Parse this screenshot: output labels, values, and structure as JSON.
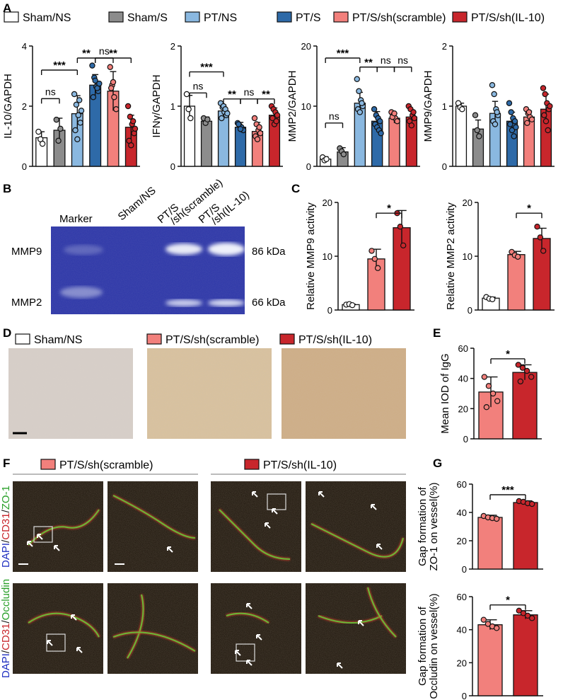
{
  "panel_letters": [
    "A",
    "B",
    "C",
    "D",
    "E",
    "F",
    "G"
  ],
  "groups": [
    {
      "name": "Sham/NS",
      "color": "#ffffff"
    },
    {
      "name": "Sham/S",
      "color": "#8c8c8c"
    },
    {
      "name": "PT/NS",
      "color": "#8ab8e0"
    },
    {
      "name": "PT/S",
      "color": "#2e6aa8"
    },
    {
      "name": "PT/S/sh(scramble)",
      "color": "#f2807c"
    },
    {
      "name": "PT/S/sh(IL-10)",
      "color": "#c8262c"
    }
  ],
  "chart_data": [
    {
      "id": "A1",
      "type": "bar",
      "ylabel": "IL-10/GAPDH",
      "ylim": [
        0,
        4
      ],
      "ticks": [
        "0",
        "2",
        "4"
      ],
      "categories": [
        "Sham/NS",
        "Sham/S",
        "PT/NS",
        "PT/S",
        "PT/S/sh(scramble)",
        "PT/S/sh(IL-10)"
      ],
      "values": [
        0.95,
        1.2,
        1.75,
        2.7,
        2.5,
        1.3
      ],
      "errors": [
        0.2,
        0.4,
        0.6,
        0.35,
        0.65,
        0.4
      ],
      "points": [
        [
          1.15,
          0.9,
          0.75
        ],
        [
          1.55,
          0.85,
          1.25
        ],
        [
          2.4,
          2.05,
          1.7,
          1.45,
          1.2,
          0.9,
          2.2,
          1.85
        ],
        [
          3.35,
          2.95,
          2.65,
          2.5,
          2.3,
          2.85,
          2.6,
          2.75
        ],
        [
          3.3,
          2.7,
          2.3,
          1.9,
          2.6,
          2.8
        ],
        [
          2.0,
          1.65,
          1.4,
          1.1,
          0.85,
          0.7,
          1.5,
          1.25
        ]
      ],
      "annotations": [
        {
          "text": "***",
          "from": 0,
          "to": 2
        },
        {
          "text": "ns",
          "from": 0,
          "to": 1
        },
        {
          "text": "**",
          "from": 3,
          "to": "2"
        },
        {
          "text": "ns",
          "from": 3,
          "to": 4
        },
        {
          "text": "**",
          "from": 3,
          "to": 5
        }
      ]
    },
    {
      "id": "A2",
      "type": "bar",
      "ylabel": "IFNγ/GAPDH",
      "ylim": [
        0,
        2
      ],
      "ticks": [
        "0",
        "1",
        "2"
      ],
      "categories": [
        "Sham/NS",
        "Sham/S",
        "PT/NS",
        "PT/S",
        "PT/S/sh(scramble)",
        "PT/S/sh(IL-10)"
      ],
      "values": [
        1.0,
        0.75,
        0.92,
        0.65,
        0.58,
        0.85
      ],
      "errors": [
        0.18,
        0.07,
        0.1,
        0.08,
        0.15,
        0.12
      ],
      "points": [
        [
          1.2,
          0.95,
          0.8
        ],
        [
          0.8,
          0.72,
          0.78
        ],
        [
          1.05,
          0.98,
          0.9,
          0.85,
          0.8,
          1.0,
          0.95,
          0.88
        ],
        [
          0.72,
          0.68,
          0.65,
          0.6,
          0.7,
          0.62
        ],
        [
          0.8,
          0.7,
          0.6,
          0.55,
          0.5,
          0.45,
          0.65
        ],
        [
          1.0,
          0.95,
          0.9,
          0.85,
          0.8,
          0.7,
          0.75
        ]
      ],
      "annotations": [
        {
          "text": "***",
          "from": 0,
          "to": 2
        },
        {
          "text": "ns",
          "from": 0,
          "to": 1
        },
        {
          "text": "**",
          "from": 2,
          "to": 3
        },
        {
          "text": "ns",
          "from": 3,
          "to": 4
        },
        {
          "text": "**",
          "from": 4,
          "to": 5
        }
      ]
    },
    {
      "id": "A3",
      "type": "bar",
      "ylabel": "MMP2/GAPDH",
      "ylim": [
        0,
        20
      ],
      "ticks": [
        "0",
        "10",
        "20"
      ],
      "categories": [
        "Sham/NS",
        "Sham/S",
        "PT/NS",
        "PT/S",
        "PT/S/sh(scramble)",
        "PT/S/sh(IL-10)"
      ],
      "values": [
        1.2,
        2.4,
        10.5,
        7.5,
        8.0,
        8.2
      ],
      "errors": [
        0.4,
        0.7,
        1.8,
        1.6,
        0.8,
        1.2
      ],
      "points": [
        [
          1.5,
          1.0,
          1.2
        ],
        [
          3.0,
          2.5,
          2.0
        ],
        [
          14.5,
          12.5,
          11.0,
          10.0,
          9.5,
          9.0,
          10.5
        ],
        [
          9.5,
          8.5,
          8.0,
          7.5,
          7.0,
          6.5,
          6.0,
          5.5
        ],
        [
          9.0,
          8.5,
          8.0,
          7.5,
          8.2,
          8.8
        ],
        [
          10.0,
          9.5,
          8.5,
          8.0,
          7.5,
          6.8,
          9.0
        ]
      ],
      "annotations": [
        {
          "text": "ns",
          "from": 0,
          "to": 1
        },
        {
          "text": "***",
          "from": 0,
          "to": 2
        },
        {
          "text": "**",
          "from": 2,
          "to": 3
        },
        {
          "text": "ns",
          "from": 3,
          "to": 4
        },
        {
          "text": "ns",
          "from": 4,
          "to": 5
        }
      ]
    },
    {
      "id": "A4",
      "type": "bar",
      "ylabel": "MMP9/GAPDH",
      "ylim": [
        0,
        2
      ],
      "ticks": [
        "0",
        "1",
        "2"
      ],
      "categories": [
        "Sham/NS",
        "Sham/S",
        "PT/NS",
        "PT/S",
        "PT/S/sh(scramble)",
        "PT/S/sh(IL-10)"
      ],
      "values": [
        1.0,
        0.62,
        0.88,
        0.75,
        0.82,
        0.95
      ],
      "errors": [
        0.05,
        0.15,
        0.2,
        0.15,
        0.1,
        0.25
      ],
      "points": [
        [
          1.05,
          0.98,
          0.95
        ],
        [
          0.85,
          0.6,
          0.5
        ],
        [
          1.35,
          1.2,
          0.95,
          0.85,
          0.75,
          0.7,
          0.9
        ],
        [
          1.05,
          0.9,
          0.8,
          0.75,
          0.7,
          0.6,
          0.5,
          0.65
        ],
        [
          0.95,
          0.88,
          0.82,
          0.78,
          0.72,
          0.9
        ],
        [
          1.3,
          1.2,
          1.05,
          0.95,
          0.85,
          0.75,
          0.6,
          1.0
        ]
      ],
      "annotations": []
    },
    {
      "id": "C1",
      "type": "bar",
      "ylabel": "Relative MMP9 activity",
      "ylim": [
        0,
        20
      ],
      "ticks": [
        "0",
        "10",
        "20"
      ],
      "categories": [
        "Sham/NS",
        "PT/S/sh(scramble)",
        "PT/S/sh(IL-10)"
      ],
      "values": [
        1.0,
        9.5,
        15.3
      ],
      "errors": [
        0.1,
        1.8,
        3.2
      ],
      "points": [
        [
          1.0,
          1.1,
          0.9
        ],
        [
          11.0,
          9.5,
          7.8
        ],
        [
          18.0,
          15.5,
          12.0
        ]
      ],
      "annotations": [
        {
          "text": "*",
          "from": 1,
          "to": 2
        }
      ]
    },
    {
      "id": "C2",
      "type": "bar",
      "ylabel": "Relative MMP2 activity",
      "ylim": [
        0,
        20
      ],
      "ticks": [
        "0",
        "10",
        "20"
      ],
      "categories": [
        "Sham/NS",
        "PT/S/sh(scramble)",
        "PT/S/sh(IL-10)"
      ],
      "values": [
        2.2,
        10.3,
        13.3
      ],
      "errors": [
        0.2,
        0.6,
        1.9
      ],
      "points": [
        [
          2.4,
          2.1,
          2.0
        ],
        [
          10.8,
          10.2,
          9.9
        ],
        [
          15.5,
          13.5,
          11.0
        ]
      ],
      "annotations": [
        {
          "text": "*",
          "from": 1,
          "to": 2
        }
      ]
    },
    {
      "id": "E",
      "type": "bar",
      "ylabel": "Mean IOD of IgG",
      "ylim": [
        0,
        60
      ],
      "ticks": [
        "0",
        "20",
        "40",
        "60"
      ],
      "categories": [
        "PT/S/sh(scramble)",
        "PT/S/sh(IL-10)"
      ],
      "values": [
        31,
        44
      ],
      "errors": [
        10,
        5
      ],
      "points": [
        [
          41,
          35,
          30,
          25,
          21
        ],
        [
          49,
          47,
          45,
          41,
          38
        ]
      ],
      "annotations": [
        {
          "text": "*",
          "from": 0,
          "to": 1
        }
      ]
    },
    {
      "id": "G1",
      "type": "bar",
      "ylabel": "Gap formation of ZO-1 on vessel(%)",
      "ylim": [
        0,
        60
      ],
      "ticks": [
        "0",
        "20",
        "40",
        "60"
      ],
      "categories": [
        "PT/S/sh(scramble)",
        "PT/S/sh(IL-10)"
      ],
      "values": [
        36.5,
        47
      ],
      "errors": [
        1.5,
        1.2
      ],
      "points": [
        [
          37.5,
          36.5,
          36,
          35.5
        ],
        [
          48,
          47.5,
          46.5,
          46
        ]
      ],
      "annotations": [
        {
          "text": "***",
          "from": 0,
          "to": 1
        }
      ]
    },
    {
      "id": "G2",
      "type": "bar",
      "ylabel": "Gap formation of Occludin on vessel(%)",
      "ylim": [
        0,
        60
      ],
      "ticks": [
        "0",
        "20",
        "40",
        "60"
      ],
      "categories": [
        "PT/S/sh(scramble)",
        "PT/S/sh(IL-10)"
      ],
      "values": [
        43,
        49
      ],
      "errors": [
        3,
        2.5
      ],
      "points": [
        [
          46,
          43.5,
          42,
          41
        ],
        [
          51.5,
          50,
          48.5,
          47
        ]
      ],
      "annotations": [
        {
          "text": "*",
          "from": 0,
          "to": 1
        }
      ]
    }
  ],
  "panel_B": {
    "lanes": [
      "Marker",
      "Sham/NS",
      "PT/S\n/sh(scramble)",
      "PT/S\n/sh(IL-10)"
    ],
    "bands": [
      "MMP9",
      "MMP2"
    ],
    "sizes": [
      "86 kDa",
      "66 kDa"
    ]
  },
  "panel_D": {
    "legend": [
      "Sham/NS",
      "PT/S/sh(scramble)",
      "PT/S/sh(IL-10)"
    ]
  },
  "panel_F": {
    "headers": [
      "PT/S/sh(scramble)",
      "PT/S/sh(IL-10)"
    ],
    "row_labels": [
      [
        {
          "t": "DAPI",
          "c": "#2030c0"
        },
        {
          "t": "/",
          "c": "#111"
        },
        {
          "t": "CD31",
          "c": "#c8262c"
        },
        {
          "t": "/",
          "c": "#111"
        },
        {
          "t": "ZO-1",
          "c": "#2aa02a"
        }
      ],
      [
        {
          "t": "DAPI",
          "c": "#2030c0"
        },
        {
          "t": "/",
          "c": "#111"
        },
        {
          "t": "CD31",
          "c": "#c8262c"
        },
        {
          "t": "/",
          "c": "#111"
        },
        {
          "t": "Occludin",
          "c": "#2aa02a"
        }
      ]
    ]
  }
}
